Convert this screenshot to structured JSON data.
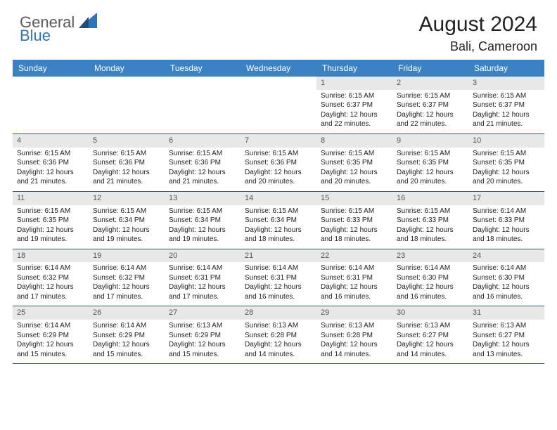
{
  "logo": {
    "general": "General",
    "blue": "Blue"
  },
  "title": "August 2024",
  "location": "Bali, Cameroon",
  "colors": {
    "header_bg": "#3a82c4",
    "divider": "#2e5c8a",
    "daynum_bg": "#e8e8e8",
    "logo_gray": "#5a5a5a",
    "logo_blue": "#2e75b6"
  },
  "weekdays": [
    "Sunday",
    "Monday",
    "Tuesday",
    "Wednesday",
    "Thursday",
    "Friday",
    "Saturday"
  ],
  "weeks": [
    [
      null,
      null,
      null,
      null,
      {
        "n": "1",
        "sr": "6:15 AM",
        "ss": "6:37 PM",
        "dl": "12 hours and 22 minutes."
      },
      {
        "n": "2",
        "sr": "6:15 AM",
        "ss": "6:37 PM",
        "dl": "12 hours and 22 minutes."
      },
      {
        "n": "3",
        "sr": "6:15 AM",
        "ss": "6:37 PM",
        "dl": "12 hours and 21 minutes."
      }
    ],
    [
      {
        "n": "4",
        "sr": "6:15 AM",
        "ss": "6:36 PM",
        "dl": "12 hours and 21 minutes."
      },
      {
        "n": "5",
        "sr": "6:15 AM",
        "ss": "6:36 PM",
        "dl": "12 hours and 21 minutes."
      },
      {
        "n": "6",
        "sr": "6:15 AM",
        "ss": "6:36 PM",
        "dl": "12 hours and 21 minutes."
      },
      {
        "n": "7",
        "sr": "6:15 AM",
        "ss": "6:36 PM",
        "dl": "12 hours and 20 minutes."
      },
      {
        "n": "8",
        "sr": "6:15 AM",
        "ss": "6:35 PM",
        "dl": "12 hours and 20 minutes."
      },
      {
        "n": "9",
        "sr": "6:15 AM",
        "ss": "6:35 PM",
        "dl": "12 hours and 20 minutes."
      },
      {
        "n": "10",
        "sr": "6:15 AM",
        "ss": "6:35 PM",
        "dl": "12 hours and 20 minutes."
      }
    ],
    [
      {
        "n": "11",
        "sr": "6:15 AM",
        "ss": "6:35 PM",
        "dl": "12 hours and 19 minutes."
      },
      {
        "n": "12",
        "sr": "6:15 AM",
        "ss": "6:34 PM",
        "dl": "12 hours and 19 minutes."
      },
      {
        "n": "13",
        "sr": "6:15 AM",
        "ss": "6:34 PM",
        "dl": "12 hours and 19 minutes."
      },
      {
        "n": "14",
        "sr": "6:15 AM",
        "ss": "6:34 PM",
        "dl": "12 hours and 18 minutes."
      },
      {
        "n": "15",
        "sr": "6:15 AM",
        "ss": "6:33 PM",
        "dl": "12 hours and 18 minutes."
      },
      {
        "n": "16",
        "sr": "6:15 AM",
        "ss": "6:33 PM",
        "dl": "12 hours and 18 minutes."
      },
      {
        "n": "17",
        "sr": "6:14 AM",
        "ss": "6:33 PM",
        "dl": "12 hours and 18 minutes."
      }
    ],
    [
      {
        "n": "18",
        "sr": "6:14 AM",
        "ss": "6:32 PM",
        "dl": "12 hours and 17 minutes."
      },
      {
        "n": "19",
        "sr": "6:14 AM",
        "ss": "6:32 PM",
        "dl": "12 hours and 17 minutes."
      },
      {
        "n": "20",
        "sr": "6:14 AM",
        "ss": "6:31 PM",
        "dl": "12 hours and 17 minutes."
      },
      {
        "n": "21",
        "sr": "6:14 AM",
        "ss": "6:31 PM",
        "dl": "12 hours and 16 minutes."
      },
      {
        "n": "22",
        "sr": "6:14 AM",
        "ss": "6:31 PM",
        "dl": "12 hours and 16 minutes."
      },
      {
        "n": "23",
        "sr": "6:14 AM",
        "ss": "6:30 PM",
        "dl": "12 hours and 16 minutes."
      },
      {
        "n": "24",
        "sr": "6:14 AM",
        "ss": "6:30 PM",
        "dl": "12 hours and 16 minutes."
      }
    ],
    [
      {
        "n": "25",
        "sr": "6:14 AM",
        "ss": "6:29 PM",
        "dl": "12 hours and 15 minutes."
      },
      {
        "n": "26",
        "sr": "6:14 AM",
        "ss": "6:29 PM",
        "dl": "12 hours and 15 minutes."
      },
      {
        "n": "27",
        "sr": "6:13 AM",
        "ss": "6:29 PM",
        "dl": "12 hours and 15 minutes."
      },
      {
        "n": "28",
        "sr": "6:13 AM",
        "ss": "6:28 PM",
        "dl": "12 hours and 14 minutes."
      },
      {
        "n": "29",
        "sr": "6:13 AM",
        "ss": "6:28 PM",
        "dl": "12 hours and 14 minutes."
      },
      {
        "n": "30",
        "sr": "6:13 AM",
        "ss": "6:27 PM",
        "dl": "12 hours and 14 minutes."
      },
      {
        "n": "31",
        "sr": "6:13 AM",
        "ss": "6:27 PM",
        "dl": "12 hours and 13 minutes."
      }
    ]
  ],
  "labels": {
    "sunrise": "Sunrise: ",
    "sunset": "Sunset: ",
    "daylight": "Daylight: "
  }
}
